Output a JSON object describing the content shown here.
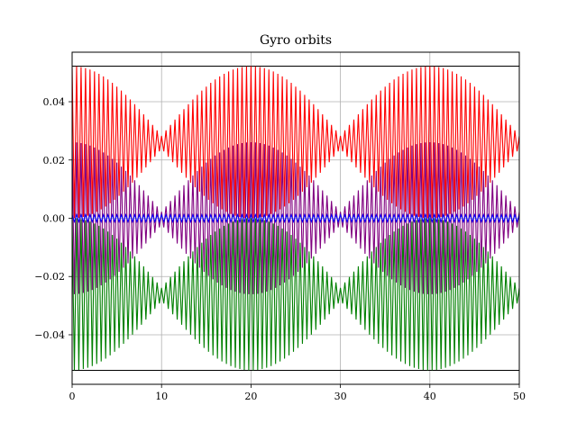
{
  "chart_data": {
    "type": "line",
    "title": "Gyro orbits",
    "xlabel": "",
    "ylabel": "",
    "xlim": [
      0,
      50
    ],
    "ylim": [
      -0.057,
      0.057
    ],
    "grid": true,
    "x_ticks": [
      0,
      10,
      20,
      30,
      40,
      50
    ],
    "x_tick_labels": [
      "0",
      "10",
      "20",
      "30",
      "40",
      "50"
    ],
    "y_ticks": [
      -0.04,
      -0.02,
      0.0,
      0.02,
      0.04
    ],
    "y_tick_labels": [
      "−0.04",
      "−0.02",
      "0.00",
      "0.02",
      "0.04"
    ],
    "x_step": 0.25,
    "envelope_period": 20,
    "reference_lines": [
      {
        "y": 0.0522,
        "color": "#000000"
      },
      {
        "y": -0.0522,
        "color": "#000000"
      }
    ],
    "series": [
      {
        "color": "#ff0000",
        "center": 0.0261,
        "max_amplitude": 0.0261,
        "min_amplitude": 0.0022,
        "fast_period": 0.5,
        "phase": 0
      },
      {
        "color": "#008000",
        "center": -0.0261,
        "max_amplitude": 0.0261,
        "min_amplitude": 0.0022,
        "fast_period": 0.5,
        "phase": 0
      },
      {
        "color": "#800080",
        "center": 0.0,
        "max_amplitude": 0.0261,
        "min_amplitude": 0.0022,
        "fast_period": 0.5,
        "phase": 0
      },
      {
        "color": "#0000ff",
        "center": 0.0,
        "max_amplitude": 0.0012,
        "min_amplitude": 0.0012,
        "fast_period": 0.5,
        "phase": 0
      }
    ]
  }
}
